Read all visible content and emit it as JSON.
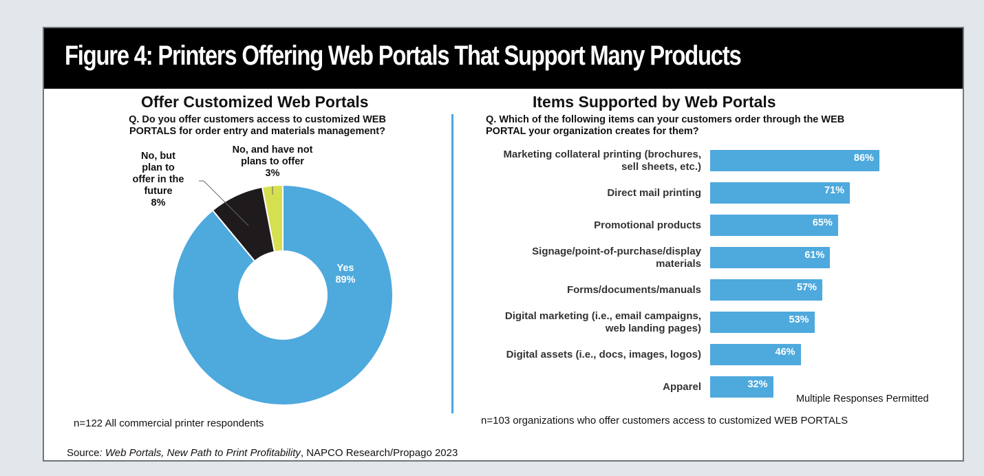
{
  "figure_title": "Figure 4: Printers Offering Web Portals That Support Many Products",
  "source": {
    "prefix": "Source",
    "italic": ": Web Portals, New Path to Print Profitability",
    "rest": ", NAPCO Research/Propago 2023"
  },
  "colors": {
    "blue": "#4ea9dd",
    "black": "#1f1b1c",
    "lime": "#d6df4f"
  },
  "chart_data": [
    {
      "type": "pie",
      "title": "Offer Customized Web Portals",
      "question": [
        "Q. Do you offer customers access to customized WEB",
        "PORTALS for order entry and materials management?"
      ],
      "slices": [
        {
          "label": "Yes",
          "value": 89,
          "display": "89%",
          "color": "#4ea9dd"
        },
        {
          "label": "No, but plan to offer in the future",
          "value": 8,
          "display": "8%",
          "color": "#1f1b1c"
        },
        {
          "label": "No, and have not plans to offer",
          "value": 3,
          "display": "3%",
          "color": "#d6df4f"
        }
      ],
      "slice_labels": {
        "yes": [
          "Yes",
          "89%"
        ],
        "no_plan": [
          "No, but",
          "plan to",
          "offer in the",
          "future",
          "8%"
        ],
        "no_never": [
          "No, and have not",
          "plans to offer",
          "3%"
        ]
      },
      "note": "n=122 All commercial printer respondents"
    },
    {
      "type": "bar",
      "orientation": "horizontal",
      "title": "Items Supported by Web Portals",
      "question": [
        "Q. Which of the following items can your customers order through the WEB",
        "PORTAL your organization creates for them?"
      ],
      "categories": [
        [
          "Marketing collateral printing (brochures,",
          "sell sheets, etc.)"
        ],
        [
          "Direct mail printing"
        ],
        [
          "Promotional products"
        ],
        [
          "Signage/point-of-purchase/display",
          "materials"
        ],
        [
          "Forms/documents/manuals"
        ],
        [
          "Digital marketing (i.e., email campaigns,",
          "web landing pages)"
        ],
        [
          "Digital assets (i.e., docs, images, logos)"
        ],
        [
          "Apparel"
        ]
      ],
      "values": [
        86,
        71,
        65,
        61,
        57,
        53,
        46,
        32
      ],
      "value_labels": [
        "86%",
        "71%",
        "65%",
        "61%",
        "57%",
        "53%",
        "46%",
        "32%"
      ],
      "color": "#4ea9dd",
      "xlim": [
        0,
        100
      ],
      "multi_note": "Multiple Responses Permitted",
      "note": "n=103 organizations who offer customers access to customized WEB PORTALS"
    }
  ]
}
